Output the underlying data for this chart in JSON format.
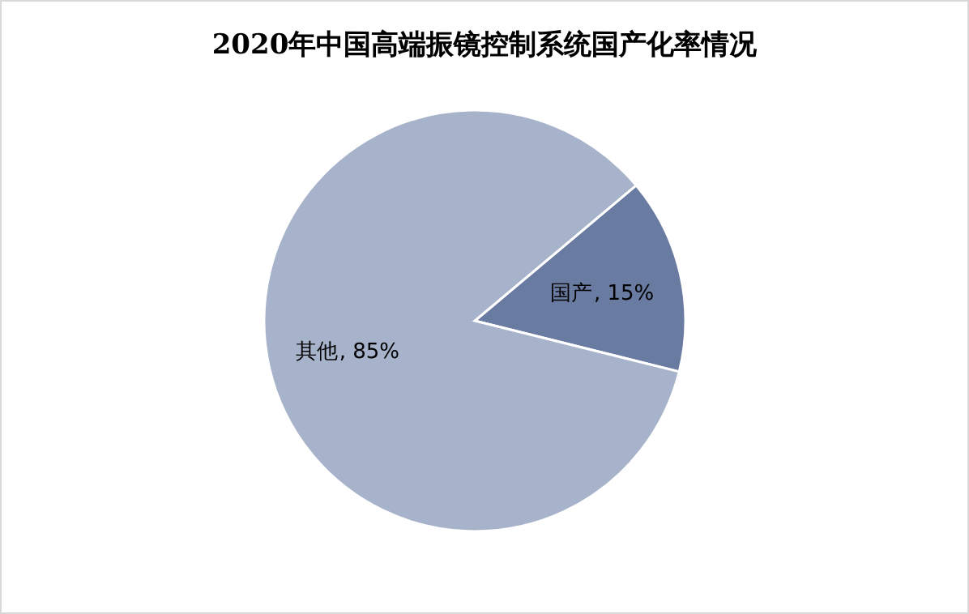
{
  "chart_data": {
    "type": "pie",
    "title": "2020年中国高端振镜控制系统国产化率情况",
    "categories": [
      "国产",
      "其他"
    ],
    "values": [
      15,
      85
    ],
    "value_labels": [
      ", 15%",
      ", 85%"
    ],
    "colors": [
      "#6a7ba2",
      "#a7b3ca"
    ],
    "legend": false
  }
}
